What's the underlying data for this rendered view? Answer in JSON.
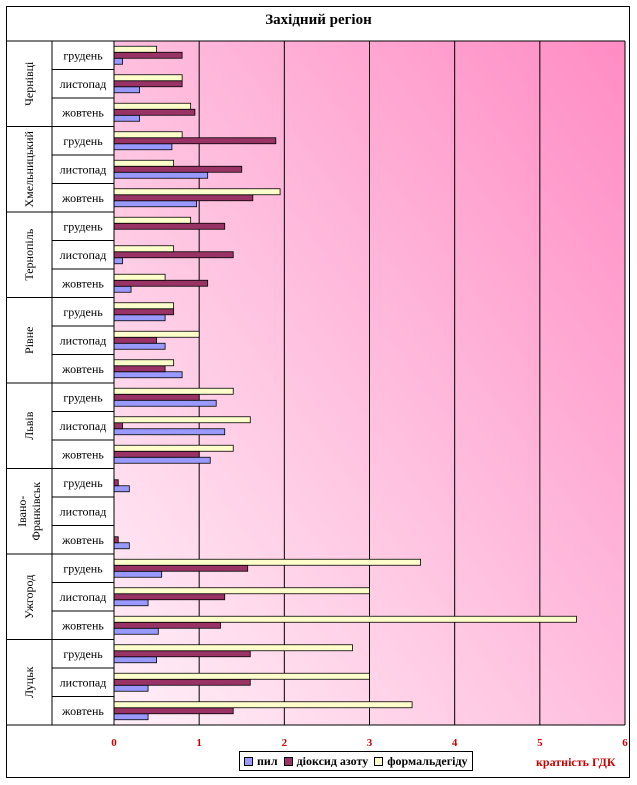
{
  "chart_data": {
    "type": "bar",
    "orientation": "horizontal",
    "title": "Західний регіон",
    "xlabel": "кратність ГДК",
    "xlim": [
      0,
      6
    ],
    "xticks": [
      0,
      1,
      2,
      3,
      4,
      5,
      6
    ],
    "grid": true,
    "legend_position": "bottom",
    "series_names": [
      "пил",
      "діоксид азоту",
      "формальдегіду"
    ],
    "colors": {
      "пил": "#9999ff",
      "діоксид азоту": "#993366",
      "формальдегіду": "#ffffcc",
      "plot_bg_left": "#fff0f8",
      "plot_bg_right": "#ff8cc4",
      "tick_labels": "#cc0000"
    },
    "groups": [
      {
        "city": "Чернівці",
        "rows": [
          {
            "month": "грудень",
            "values": [
              0.1,
              0.8,
              0.5
            ]
          },
          {
            "month": "листопад",
            "values": [
              0.3,
              0.8,
              0.8
            ]
          },
          {
            "month": "жовтень",
            "values": [
              0.3,
              0.95,
              0.9
            ]
          }
        ]
      },
      {
        "city": "Хмельницький",
        "rows": [
          {
            "month": "грудень",
            "values": [
              0.68,
              1.9,
              0.8
            ]
          },
          {
            "month": "листопад",
            "values": [
              1.1,
              1.5,
              0.7
            ]
          },
          {
            "month": "жовтень",
            "values": [
              0.97,
              1.63,
              1.95
            ]
          }
        ]
      },
      {
        "city": "Тернопіль",
        "rows": [
          {
            "month": "грудень",
            "values": [
              0,
              1.3,
              0.9
            ]
          },
          {
            "month": "листопад",
            "values": [
              0.1,
              1.4,
              0.7
            ]
          },
          {
            "month": "жовтень",
            "values": [
              0.2,
              1.1,
              0.6
            ]
          }
        ]
      },
      {
        "city": "Рівне",
        "rows": [
          {
            "month": "грудень",
            "values": [
              0.6,
              0.7,
              0.7
            ]
          },
          {
            "month": "листопад",
            "values": [
              0.6,
              0.5,
              1.0
            ]
          },
          {
            "month": "жовтень",
            "values": [
              0.8,
              0.6,
              0.7
            ]
          }
        ]
      },
      {
        "city": "Львів",
        "rows": [
          {
            "month": "грудень",
            "values": [
              1.2,
              1.0,
              1.4
            ]
          },
          {
            "month": "листопад",
            "values": [
              1.3,
              0.1,
              1.6
            ]
          },
          {
            "month": "жовтень",
            "values": [
              1.13,
              1.0,
              1.4
            ]
          }
        ]
      },
      {
        "city": "Івано-Франківськ",
        "rows": [
          {
            "month": "грудень",
            "values": [
              0.18,
              0.05,
              0
            ]
          },
          {
            "month": "листопад",
            "values": [
              0,
              0,
              0
            ]
          },
          {
            "month": "жовтень",
            "values": [
              0.18,
              0.05,
              0
            ]
          }
        ]
      },
      {
        "city": "Ужгород",
        "rows": [
          {
            "month": "грудень",
            "values": [
              0.56,
              1.57,
              3.6
            ]
          },
          {
            "month": "листопад",
            "values": [
              0.4,
              1.3,
              3.0
            ]
          },
          {
            "month": "жовтень",
            "values": [
              0.52,
              1.25,
              5.43
            ]
          }
        ]
      },
      {
        "city": "Луцьк",
        "rows": [
          {
            "month": "грудень",
            "values": [
              0.5,
              1.6,
              2.8
            ]
          },
          {
            "month": "листопад",
            "values": [
              0.4,
              1.6,
              3.0
            ]
          },
          {
            "month": "жовтень",
            "values": [
              0.4,
              1.4,
              3.5
            ]
          }
        ]
      }
    ]
  }
}
